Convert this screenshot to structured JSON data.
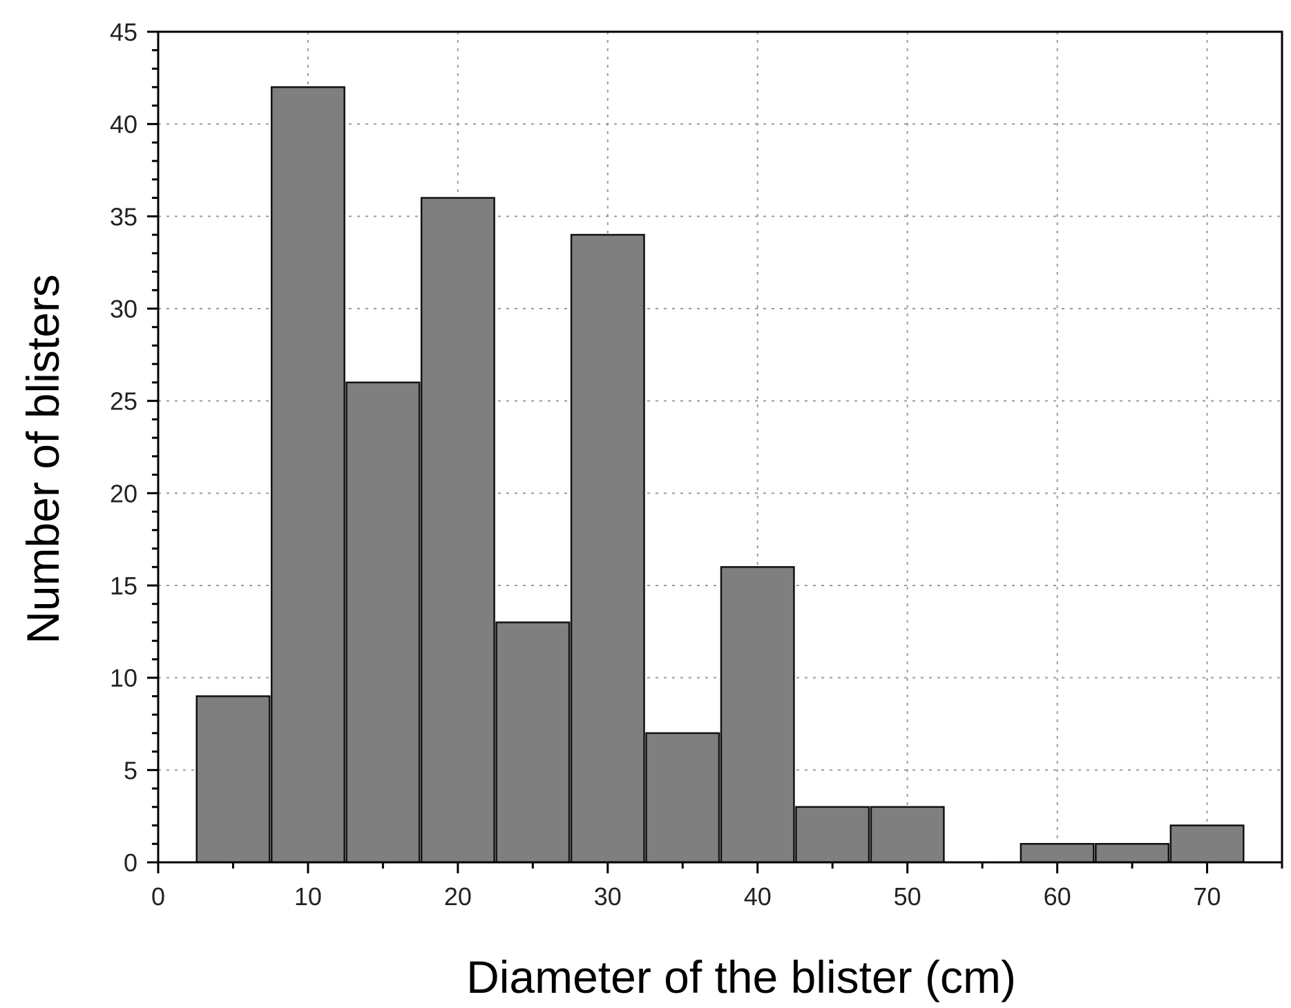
{
  "chart_data": {
    "type": "bar",
    "xlabel": "Diameter of the blister (cm)",
    "ylabel": "Number of blisters",
    "xlim": [
      0,
      75
    ],
    "ylim": [
      0,
      45
    ],
    "x_ticks": [
      0,
      10,
      20,
      30,
      40,
      50,
      60,
      70
    ],
    "y_ticks": [
      0,
      5,
      10,
      15,
      20,
      25,
      30,
      35,
      40,
      45
    ],
    "bin_width": 5,
    "bins": [
      {
        "start": 2.5,
        "end": 7.5,
        "value": 9
      },
      {
        "start": 7.5,
        "end": 12.5,
        "value": 42
      },
      {
        "start": 12.5,
        "end": 17.5,
        "value": 26
      },
      {
        "start": 17.5,
        "end": 22.5,
        "value": 36
      },
      {
        "start": 22.5,
        "end": 27.5,
        "value": 13
      },
      {
        "start": 27.5,
        "end": 32.5,
        "value": 34
      },
      {
        "start": 32.5,
        "end": 37.5,
        "value": 7
      },
      {
        "start": 37.5,
        "end": 42.5,
        "value": 16
      },
      {
        "start": 42.5,
        "end": 47.5,
        "value": 3
      },
      {
        "start": 47.5,
        "end": 52.5,
        "value": 3
      },
      {
        "start": 52.5,
        "end": 57.5,
        "value": 0
      },
      {
        "start": 57.5,
        "end": 62.5,
        "value": 1
      },
      {
        "start": 62.5,
        "end": 67.5,
        "value": 1
      },
      {
        "start": 67.5,
        "end": 72.5,
        "value": 2
      }
    ],
    "grid": true,
    "bar_color": "#7f7f7f",
    "bar_edge_color": "#111111",
    "grid_color": "#9a9a9a"
  }
}
